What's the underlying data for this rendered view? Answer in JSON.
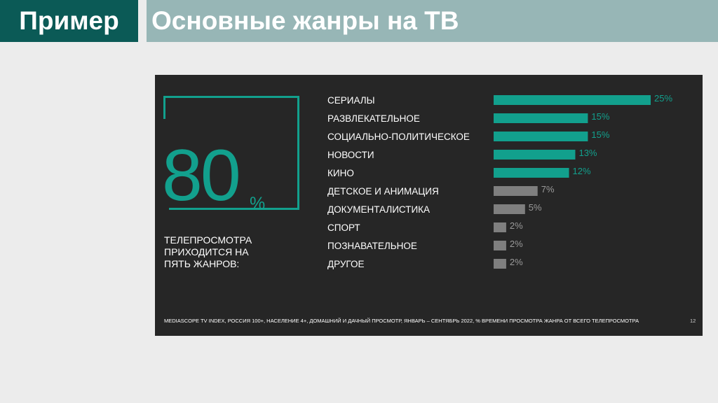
{
  "header": {
    "left_title": "Пример",
    "right_title": "Основные жанры на ТВ"
  },
  "colors": {
    "highlight": "#12a08d",
    "muted": "#7f7f7f",
    "panel_bg": "#262626",
    "header_left_bg": "#0b5a56",
    "header_right_bg": "#97b6b6"
  },
  "highlight": {
    "number": "80",
    "unit": "%",
    "caption_lines": [
      "ТЕЛЕПРОСМОТРА",
      "ПРИХОДИТСЯ НА",
      "ПЯТЬ ЖАНРОВ:"
    ]
  },
  "chart_data": {
    "type": "bar",
    "orientation": "horizontal",
    "categories": [
      "СЕРИАЛЫ",
      "РАЗВЛЕКАТЕЛЬНОЕ",
      "СОЦИАЛЬНО-ПОЛИТИЧЕСКОЕ",
      "НОВОСТИ",
      "КИНО",
      "ДЕТСКОЕ И АНИМАЦИЯ",
      "ДОКУМЕНТАЛИСТИКА",
      "СПОРТ",
      "ПОЗНАВАТЕЛЬНОЕ",
      "ДРУГОЕ"
    ],
    "values": [
      25,
      15,
      15,
      13,
      12,
      7,
      5,
      2,
      2,
      2
    ],
    "value_labels": [
      "25%",
      "15%",
      "15%",
      "13%",
      "12%",
      "7%",
      "5%",
      "2%",
      "2%",
      "2%"
    ],
    "highlighted": [
      true,
      true,
      true,
      true,
      true,
      false,
      false,
      false,
      false,
      false
    ],
    "xlim": [
      0,
      25
    ],
    "grid": false,
    "legend": "none"
  },
  "footer": {
    "source": "MEDIASCOPE TV INDEX, РОССИЯ 100+, НАСЕЛЕНИЕ 4+, ДОМАШНИЙ И ДАЧНЫЙ ПРОСМОТР, ЯНВАРЬ – СЕНТЯБРЬ 2022, % ВРЕМЕНИ ПРОСМОТРА ЖАНРА ОТ ВСЕГО ТЕЛЕПРОСМОТРА",
    "page_number": "12"
  }
}
